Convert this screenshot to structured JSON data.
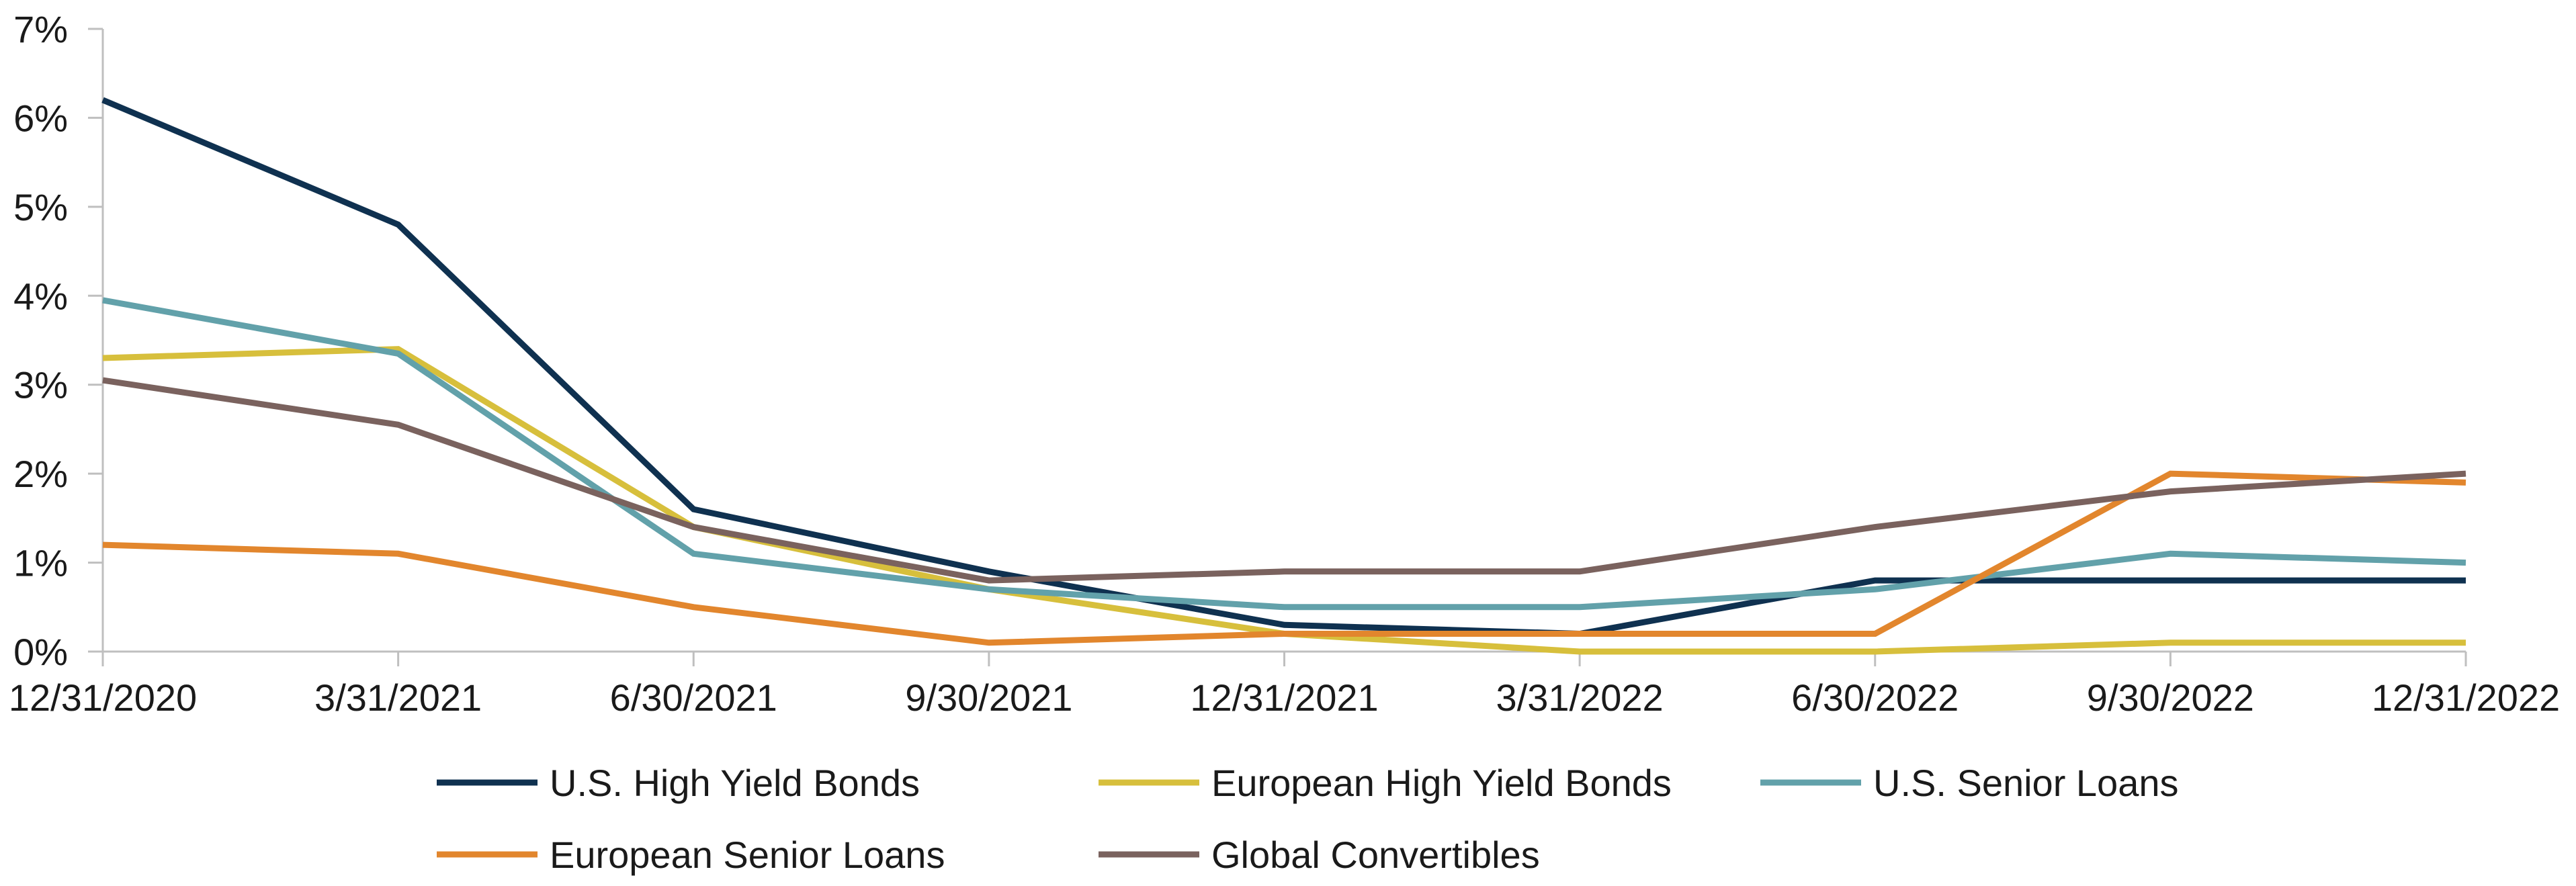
{
  "chart_data": {
    "type": "line",
    "title": "",
    "xlabel": "",
    "ylabel": "",
    "categories": [
      "12/31/2020",
      "3/31/2021",
      "6/30/2021",
      "9/30/2021",
      "12/31/2021",
      "3/31/2022",
      "6/30/2022",
      "9/30/2022",
      "12/31/2022"
    ],
    "ylim": [
      0,
      7
    ],
    "y_ticks": [
      "0%",
      "1%",
      "2%",
      "3%",
      "4%",
      "5%",
      "6%",
      "7%"
    ],
    "grid": false,
    "legend_position": "bottom",
    "series": [
      {
        "name": "U.S. High Yield Bonds",
        "color": "#0f3150",
        "values": [
          6.2,
          4.8,
          1.6,
          0.9,
          0.3,
          0.2,
          0.8,
          0.8,
          0.8
        ]
      },
      {
        "name": "European High Yield Bonds",
        "color": "#d7bf3c",
        "values": [
          3.3,
          3.4,
          1.4,
          0.7,
          0.2,
          0.0,
          0.0,
          0.1,
          0.1
        ]
      },
      {
        "name": "U.S. Senior Loans",
        "color": "#62a1aa",
        "values": [
          3.95,
          3.35,
          1.1,
          0.7,
          0.5,
          0.5,
          0.7,
          1.1,
          1.0
        ]
      },
      {
        "name": "European Senior Loans",
        "color": "#e2862d",
        "values": [
          1.2,
          1.1,
          0.5,
          0.1,
          0.2,
          0.2,
          0.2,
          2.0,
          1.9
        ]
      },
      {
        "name": "Global Convertibles",
        "color": "#7a625e",
        "values": [
          3.05,
          2.55,
          1.4,
          0.8,
          0.9,
          0.9,
          1.4,
          1.8,
          2.0
        ]
      }
    ]
  }
}
